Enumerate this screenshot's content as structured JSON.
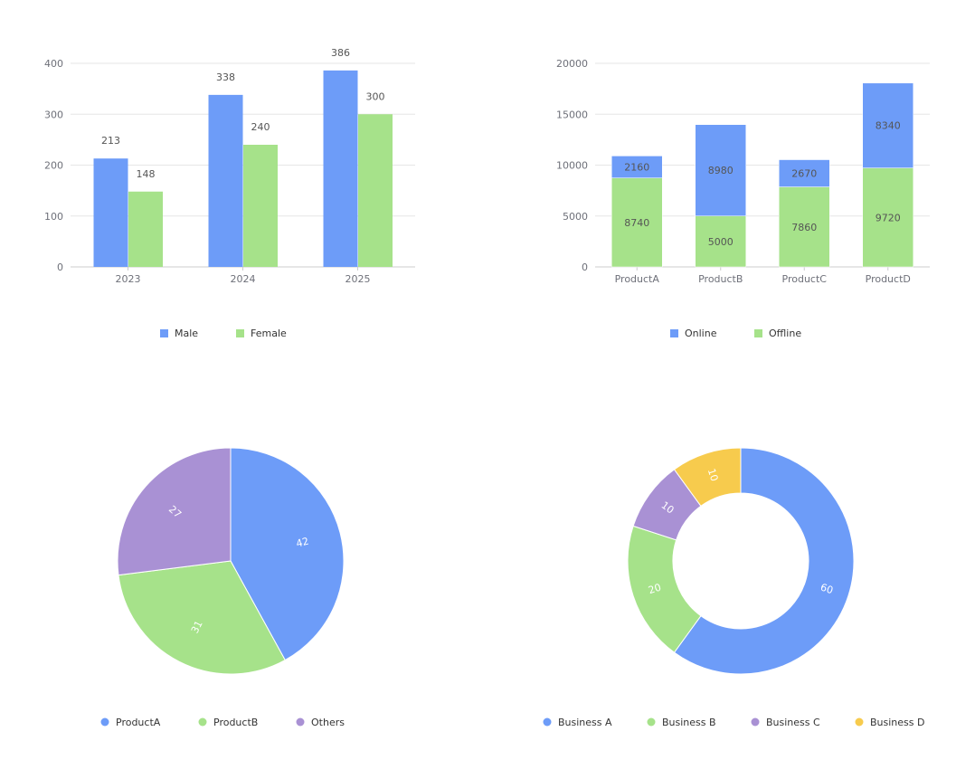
{
  "colors": {
    "blue": "#6d9cf8",
    "green": "#a6e28a",
    "purple": "#a991d4",
    "yellow": "#f7cb4d"
  },
  "chart_data": [
    {
      "type": "bar",
      "title": "",
      "categories": [
        "2023",
        "2024",
        "2025"
      ],
      "series": [
        {
          "name": "Male",
          "values": [
            213,
            338,
            386
          ]
        },
        {
          "name": "Female",
          "values": [
            148,
            240,
            300
          ]
        }
      ],
      "ylim": [
        0,
        400
      ],
      "yticks": [
        0,
        100,
        200,
        300,
        400
      ],
      "grid": true,
      "legend": "bottom"
    },
    {
      "type": "bar",
      "stacked": true,
      "title": "",
      "categories": [
        "ProductA",
        "ProductB",
        "ProductC",
        "ProductD"
      ],
      "series": [
        {
          "name": "Online",
          "values": [
            2160,
            8980,
            2670,
            8340
          ]
        },
        {
          "name": "Offline",
          "values": [
            8740,
            5000,
            7860,
            9720
          ]
        }
      ],
      "ylim": [
        0,
        20000
      ],
      "yticks": [
        0,
        5000,
        10000,
        15000,
        20000
      ],
      "grid": true,
      "legend": "bottom"
    },
    {
      "type": "pie",
      "categories": [
        "ProductA",
        "ProductB",
        "Others"
      ],
      "values": [
        42,
        31,
        27
      ],
      "legend": "bottom"
    },
    {
      "type": "pie",
      "donut": true,
      "categories": [
        "Business A",
        "Business B",
        "Business C",
        "Business D"
      ],
      "values": [
        60,
        20,
        10,
        10
      ],
      "legend": "bottom"
    }
  ]
}
